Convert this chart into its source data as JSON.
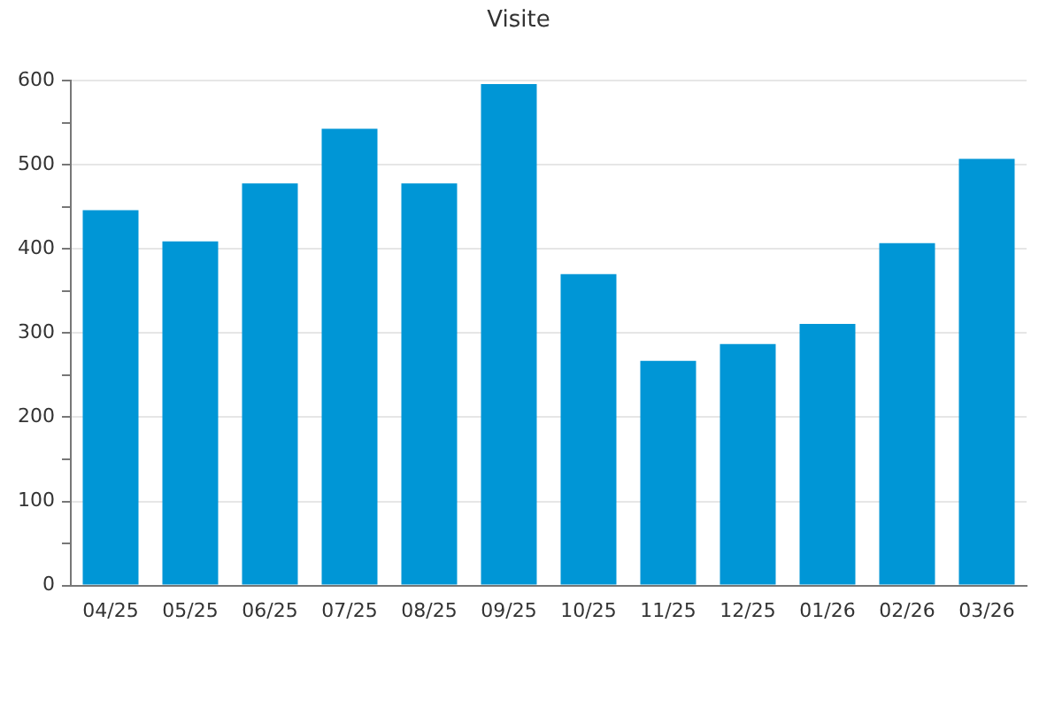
{
  "chart_data": {
    "type": "bar",
    "title": "Visite",
    "categories": [
      "04/25",
      "05/25",
      "06/25",
      "07/25",
      "08/25",
      "09/25",
      "10/25",
      "11/25",
      "12/25",
      "01/26",
      "02/26",
      "03/26"
    ],
    "values": [
      446,
      409,
      478,
      543,
      478,
      596,
      370,
      267,
      287,
      311,
      407,
      507
    ],
    "color": "#0096d6",
    "ylim": [
      0,
      600
    ],
    "yticks": [
      0,
      {
        "value": 50,
        "label": null
      },
      100,
      {
        "value": 150,
        "label": null
      },
      200,
      {
        "value": 250,
        "label": null
      },
      300,
      {
        "value": 350,
        "label": null
      },
      400,
      {
        "value": 450,
        "label": null
      },
      500,
      {
        "value": 550,
        "label": null
      },
      600
    ],
    "grid": "y",
    "legend": false
  }
}
